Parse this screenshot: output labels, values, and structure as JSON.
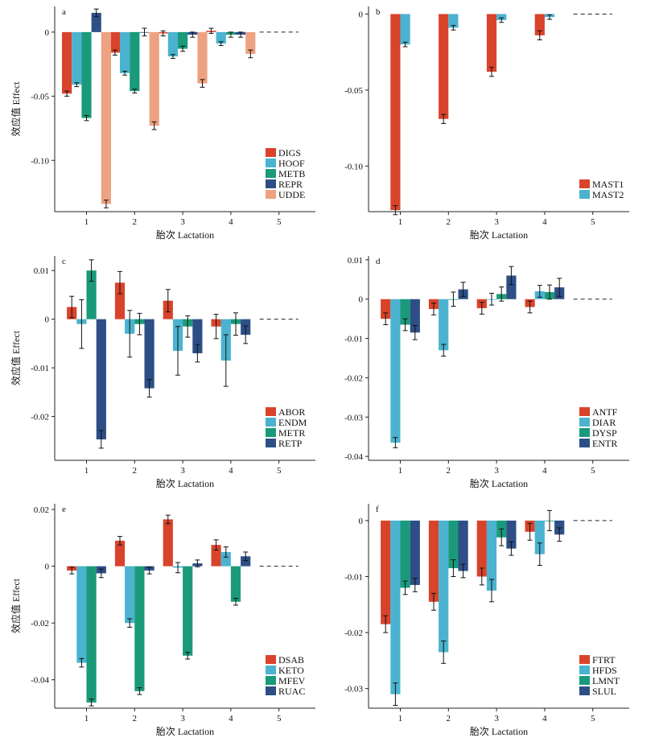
{
  "colors": {
    "s1": "#d9432b",
    "s2": "#4bb3cf",
    "s3": "#1a9a7a",
    "s4": "#2d4f86",
    "s5": "#eda281",
    "axis": "#222222"
  },
  "shared": {
    "ylabel": "效应值 Effect",
    "xlabel": "胎次 Lactation"
  },
  "chart_data": [
    {
      "type": "bar",
      "panel": "a",
      "categories": [
        "1",
        "2",
        "3",
        "4",
        "5"
      ],
      "ylim": [
        -0.14,
        0.02
      ],
      "yticks": [
        0,
        -0.05,
        -0.1
      ],
      "ytick_labels": [
        "0",
        "-0.05",
        "-0.10"
      ],
      "legend": "bottom-right",
      "series": [
        {
          "name": "DIGS",
          "color": "s1",
          "values": [
            -0.048,
            -0.016,
            -0.001,
            0.001,
            null
          ],
          "errors": [
            0.002,
            0.002,
            0.002,
            0.002,
            null
          ]
        },
        {
          "name": "HOOF",
          "color": "s2",
          "values": [
            -0.041,
            -0.032,
            -0.019,
            -0.009,
            null
          ],
          "errors": [
            0.0015,
            0.0015,
            0.0015,
            0.0015,
            null
          ]
        },
        {
          "name": "METB",
          "color": "s3",
          "values": [
            -0.067,
            -0.046,
            -0.013,
            -0.002,
            null
          ],
          "errors": [
            0.002,
            0.0015,
            0.002,
            0.002,
            null
          ]
        },
        {
          "name": "REPR",
          "color": "s4",
          "values": [
            0.015,
            0.0,
            -0.002,
            -0.002,
            null
          ],
          "errors": [
            0.003,
            0.003,
            0.002,
            0.002,
            null
          ]
        },
        {
          "name": "UDDE",
          "color": "s5",
          "values": [
            -0.134,
            -0.073,
            -0.04,
            -0.017,
            null
          ],
          "errors": [
            0.003,
            0.003,
            0.003,
            0.003,
            null
          ]
        }
      ]
    },
    {
      "type": "bar",
      "panel": "b",
      "categories": [
        "1",
        "2",
        "3",
        "4",
        "5"
      ],
      "ylim": [
        -0.13,
        0.005
      ],
      "yticks": [
        0,
        -0.05,
        -0.1
      ],
      "ytick_labels": [
        "0",
        "-0.05",
        "-0.10"
      ],
      "legend": "bottom-right",
      "series": [
        {
          "name": "MAST1",
          "color": "s1",
          "values": [
            -0.129,
            -0.069,
            -0.038,
            -0.014,
            null
          ],
          "errors": [
            0.003,
            0.003,
            0.003,
            0.003,
            null
          ]
        },
        {
          "name": "MAST2",
          "color": "s2",
          "values": [
            -0.02,
            -0.009,
            -0.004,
            -0.002,
            null
          ],
          "errors": [
            0.0015,
            0.0015,
            0.0015,
            0.0015,
            null
          ]
        }
      ]
    },
    {
      "type": "bar",
      "panel": "c",
      "categories": [
        "1",
        "2",
        "3",
        "4",
        "5"
      ],
      "ylim": [
        -0.029,
        0.013
      ],
      "yticks": [
        0.01,
        0,
        -0.01,
        -0.02
      ],
      "ytick_labels": [
        "0.01",
        "0",
        "-0.01",
        "-0.02"
      ],
      "legend": "bottom-right",
      "series": [
        {
          "name": "ABOR",
          "color": "s1",
          "values": [
            0.0025,
            0.0075,
            0.0038,
            -0.0015,
            null
          ],
          "errors": [
            0.0022,
            0.0023,
            0.0023,
            0.0025,
            null
          ]
        },
        {
          "name": "ENDM",
          "color": "s2",
          "values": [
            -0.001,
            -0.003,
            -0.0065,
            -0.0085,
            null
          ],
          "errors": [
            0.005,
            0.0048,
            0.005,
            0.0053,
            null
          ]
        },
        {
          "name": "METR",
          "color": "s3",
          "values": [
            0.01,
            -0.001,
            -0.0015,
            -0.001,
            null
          ],
          "errors": [
            0.0022,
            0.0022,
            0.0022,
            0.0023,
            null
          ]
        },
        {
          "name": "RETP",
          "color": "s4",
          "values": [
            -0.0247,
            -0.0142,
            -0.007,
            -0.0032,
            null
          ],
          "errors": [
            0.0018,
            0.0018,
            0.0018,
            0.0018,
            null
          ]
        }
      ]
    },
    {
      "type": "bar",
      "panel": "d",
      "categories": [
        "1",
        "2",
        "3",
        "4",
        "5"
      ],
      "ylim": [
        -0.041,
        0.011
      ],
      "yticks": [
        0.01,
        0,
        -0.01,
        -0.02,
        -0.03,
        -0.04
      ],
      "ytick_labels": [
        "0.01",
        "0",
        "-0.01",
        "-0.02",
        "-0.03",
        "-0.04"
      ],
      "legend": "bottom-right",
      "series": [
        {
          "name": "ANTF",
          "color": "s1",
          "values": [
            -0.005,
            -0.0025,
            -0.0023,
            -0.002,
            null
          ],
          "errors": [
            0.0015,
            0.0015,
            0.0015,
            0.0015,
            null
          ]
        },
        {
          "name": "DIAR",
          "color": "s2",
          "values": [
            -0.0365,
            -0.013,
            0.0,
            0.002,
            null
          ],
          "errors": [
            0.0013,
            0.0015,
            0.0015,
            0.0015,
            null
          ]
        },
        {
          "name": "DYSP",
          "color": "s3",
          "values": [
            -0.0065,
            0.0,
            0.0013,
            0.0018,
            null
          ],
          "errors": [
            0.0015,
            0.0018,
            0.0018,
            0.0018,
            null
          ]
        },
        {
          "name": "ENTR",
          "color": "s4",
          "values": [
            -0.0085,
            0.0025,
            0.006,
            0.003,
            null
          ],
          "errors": [
            0.0018,
            0.0018,
            0.0023,
            0.0023,
            null
          ]
        }
      ]
    },
    {
      "type": "bar",
      "panel": "e",
      "categories": [
        "1",
        "2",
        "3",
        "4",
        "5"
      ],
      "ylim": [
        -0.05,
        0.022
      ],
      "yticks": [
        0.02,
        0,
        -0.02,
        -0.04
      ],
      "ytick_labels": [
        "0.02",
        "0",
        "-0.02",
        "-0.04"
      ],
      "legend": "bottom-right",
      "series": [
        {
          "name": "DSAB",
          "color": "s1",
          "values": [
            -0.0015,
            0.009,
            0.0165,
            0.0075,
            null
          ],
          "errors": [
            0.0012,
            0.0015,
            0.0015,
            0.0018,
            null
          ]
        },
        {
          "name": "KETO",
          "color": "s2",
          "values": [
            -0.034,
            -0.02,
            -0.0005,
            0.005,
            null
          ],
          "errors": [
            0.0015,
            0.0015,
            0.0018,
            0.0018,
            null
          ]
        },
        {
          "name": "MFEV",
          "color": "s3",
          "values": [
            -0.048,
            -0.044,
            -0.0315,
            -0.0125,
            null
          ],
          "errors": [
            0.0012,
            0.0012,
            0.0012,
            0.0012,
            null
          ]
        },
        {
          "name": "RUAC",
          "color": "s4",
          "values": [
            -0.0025,
            -0.0015,
            0.001,
            0.0035,
            null
          ],
          "errors": [
            0.0015,
            0.0012,
            0.0012,
            0.0015,
            null
          ]
        }
      ]
    },
    {
      "type": "bar",
      "panel": "f",
      "categories": [
        "1",
        "2",
        "3",
        "4",
        "5"
      ],
      "ylim": [
        -0.0335,
        0.003
      ],
      "yticks": [
        0,
        -0.01,
        -0.02,
        -0.03
      ],
      "ytick_labels": [
        "0",
        "-0.01",
        "-0.02",
        "-0.03"
      ],
      "legend": "bottom-right",
      "series": [
        {
          "name": "FTRT",
          "color": "s1",
          "values": [
            -0.0185,
            -0.0145,
            -0.01,
            -0.002,
            null
          ],
          "errors": [
            0.0015,
            0.0015,
            0.0015,
            0.0015,
            null
          ]
        },
        {
          "name": "HFDS",
          "color": "s2",
          "values": [
            -0.031,
            -0.0235,
            -0.0125,
            -0.006,
            null
          ],
          "errors": [
            0.002,
            0.002,
            0.002,
            0.002,
            null
          ]
        },
        {
          "name": "LMNT",
          "color": "s3",
          "values": [
            -0.012,
            -0.0085,
            -0.003,
            0.0,
            null
          ],
          "errors": [
            0.0012,
            0.0015,
            0.0015,
            0.0018,
            null
          ]
        },
        {
          "name": "SLUL",
          "color": "s4",
          "values": [
            -0.0115,
            -0.009,
            -0.005,
            -0.0025,
            null
          ],
          "errors": [
            0.0012,
            0.0012,
            0.0012,
            0.0012,
            null
          ]
        }
      ]
    }
  ]
}
